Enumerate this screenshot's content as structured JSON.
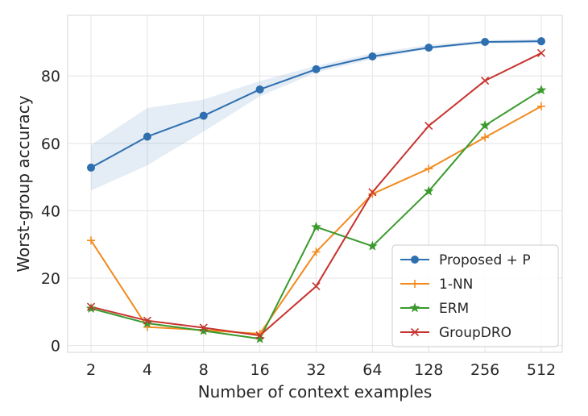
{
  "chart_data": {
    "type": "line",
    "title": "",
    "xlabel": "Number of context examples",
    "ylabel": "Worst-group accuracy",
    "categories": [
      "2",
      "4",
      "8",
      "16",
      "32",
      "64",
      "128",
      "256",
      "512"
    ],
    "ylim": [
      -2,
      98
    ],
    "yticks": [
      0,
      20,
      40,
      60,
      80
    ],
    "grid": true,
    "legend_position": "lower-right",
    "series": [
      {
        "name": "Proposed + P",
        "color": "#2e6fb0",
        "marker": "circle",
        "values": [
          52.8,
          62.0,
          68.2,
          76.0,
          82.0,
          85.8,
          88.4,
          90.1,
          90.3
        ],
        "band_lower": [
          46.0,
          53.5,
          63.5,
          74.0,
          81.0,
          85.0,
          88.0,
          89.6,
          89.8
        ],
        "band_upper": [
          59.5,
          70.5,
          73.0,
          78.5,
          83.0,
          86.8,
          89.2,
          90.6,
          91.0
        ]
      },
      {
        "name": "1-NN",
        "color": "#f28a1e",
        "marker": "plus",
        "values": [
          31.2,
          5.5,
          4.6,
          3.5,
          27.8,
          45.0,
          52.5,
          61.8,
          71.0
        ]
      },
      {
        "name": "ERM",
        "color": "#3a9a2c",
        "marker": "star",
        "values": [
          11.0,
          6.6,
          4.4,
          2.0,
          35.2,
          29.5,
          45.8,
          65.3,
          75.8
        ]
      },
      {
        "name": "GroupDRO",
        "color": "#c8332f",
        "marker": "x",
        "values": [
          11.5,
          7.4,
          5.3,
          3.0,
          17.6,
          45.5,
          65.2,
          78.6,
          86.8
        ]
      }
    ]
  }
}
